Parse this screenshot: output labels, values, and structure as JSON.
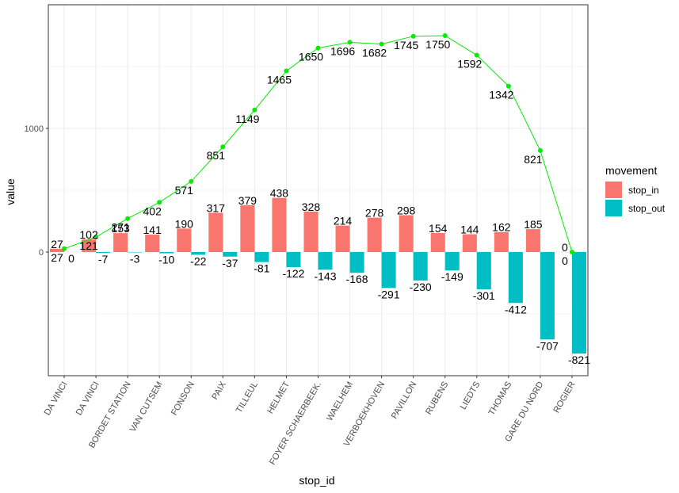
{
  "chart_data": {
    "type": "bar",
    "categories": [
      "DA VINCI",
      "DA VINCI",
      "BORDET STATION",
      "VAN CUTSEM",
      "FONSON",
      "PAIX",
      "TILLEUL",
      "HELMET",
      "FOYER SCHAERBEEK.",
      "WAELHEM",
      "VERBOEKHOVEN",
      "PAVILLON",
      "RUBENS",
      "LIEDTS",
      "THOMAS",
      "GARE DU NORD",
      "ROGIER"
    ],
    "series": [
      {
        "name": "stop_in",
        "color": "#F8766D",
        "values": [
          27,
          102,
          153,
          141,
          190,
          317,
          379,
          438,
          328,
          214,
          278,
          298,
          154,
          144,
          162,
          185,
          0
        ]
      },
      {
        "name": "stop_out",
        "color": "#00BFC4",
        "values": [
          0,
          -7,
          -3,
          -10,
          -22,
          -37,
          -81,
          -122,
          -143,
          -168,
          -291,
          -230,
          -149,
          -301,
          -412,
          -707,
          -821
        ]
      }
    ],
    "line": {
      "color": "#00EE00",
      "values": [
        27,
        121,
        271,
        402,
        571,
        851,
        1149,
        1465,
        1650,
        1696,
        1682,
        1745,
        1750,
        1592,
        1342,
        821,
        0
      ]
    },
    "xlabel": "stop_id",
    "ylabel": "value",
    "ylim": [
      -1000,
      2000
    ],
    "yticks": [
      0,
      1000
    ],
    "grid": true,
    "legend": {
      "title": "movement",
      "placement": "right",
      "entries": [
        "stop_in",
        "stop_out"
      ]
    }
  }
}
